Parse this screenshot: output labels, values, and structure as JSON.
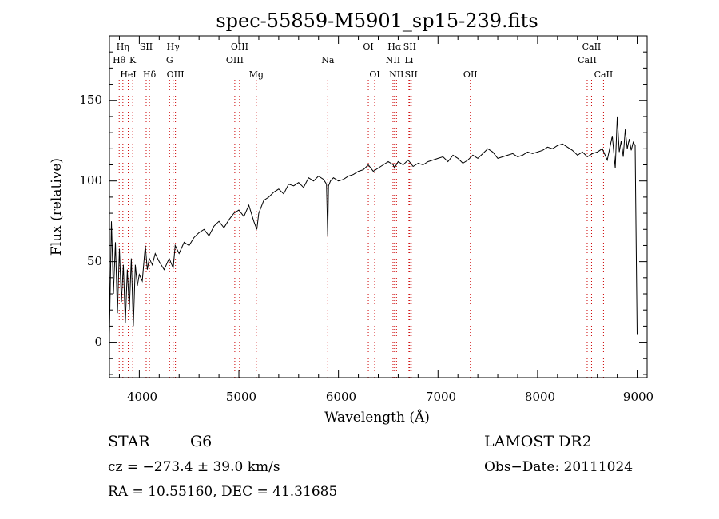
{
  "chart_data": {
    "type": "line",
    "title": "spec-55859-M5901_sp15-239.fits",
    "xlabel": "Wavelength (Å)",
    "ylabel": "Flux (relative)",
    "xlim": [
      3700,
      9100
    ],
    "ylim": [
      -22,
      190
    ],
    "x_ticks": [
      "4000",
      "5000",
      "6000",
      "7000",
      "8000",
      "9000"
    ],
    "y_ticks": [
      "0",
      "50",
      "100",
      "150"
    ],
    "grid": false,
    "series": [
      {
        "x": [
          3700,
          3720,
          3740,
          3760,
          3780,
          3800,
          3820,
          3840,
          3860,
          3880,
          3900,
          3920,
          3940,
          3960,
          3980,
          4000,
          4030,
          4060,
          4080,
          4100,
          4130,
          4160,
          4200,
          4250,
          4300,
          4340,
          4360,
          4400,
          4450,
          4500,
          4550,
          4600,
          4650,
          4700,
          4750,
          4800,
          4850,
          4860,
          4900,
          4950,
          5000,
          5050,
          5100,
          5150,
          5180,
          5200,
          5250,
          5300,
          5350,
          5400,
          5450,
          5500,
          5550,
          5600,
          5650,
          5700,
          5750,
          5800,
          5850,
          5880,
          5892,
          5900,
          5920,
          5950,
          6000,
          6050,
          6100,
          6150,
          6200,
          6250,
          6300,
          6350,
          6400,
          6450,
          6500,
          6550,
          6563,
          6600,
          6650,
          6700,
          6750,
          6800,
          6850,
          6900,
          6950,
          7000,
          7050,
          7100,
          7150,
          7200,
          7250,
          7300,
          7350,
          7400,
          7450,
          7500,
          7550,
          7600,
          7650,
          7700,
          7750,
          7800,
          7850,
          7900,
          7950,
          8000,
          8050,
          8100,
          8150,
          8200,
          8250,
          8300,
          8350,
          8400,
          8450,
          8500,
          8550,
          8600,
          8650,
          8700,
          8750,
          8780,
          8800,
          8820,
          8840,
          8860,
          8880,
          8900,
          8920,
          8940,
          8960,
          8980,
          8990,
          9000
        ],
        "y": [
          5,
          75,
          30,
          62,
          18,
          58,
          25,
          48,
          12,
          45,
          20,
          52,
          10,
          48,
          35,
          42,
          38,
          60,
          45,
          52,
          48,
          55,
          50,
          45,
          52,
          46,
          60,
          55,
          62,
          60,
          65,
          68,
          70,
          66,
          72,
          75,
          71,
          72,
          76,
          80,
          82,
          78,
          85,
          75,
          70,
          80,
          88,
          90,
          93,
          95,
          92,
          98,
          97,
          99,
          96,
          102,
          100,
          103,
          101,
          98,
          66,
          97,
          100,
          102,
          100,
          101,
          103,
          104,
          106,
          107,
          110,
          106,
          108,
          110,
          112,
          110,
          108,
          112,
          110,
          113,
          109,
          111,
          110,
          112,
          113,
          114,
          115,
          112,
          116,
          114,
          111,
          113,
          116,
          114,
          117,
          120,
          118,
          114,
          115,
          116,
          117,
          115,
          116,
          118,
          117,
          118,
          119,
          121,
          120,
          122,
          123,
          121,
          119,
          116,
          118,
          115,
          117,
          118,
          120,
          113,
          128,
          108,
          140,
          118,
          125,
          115,
          132,
          120,
          126,
          119,
          124,
          122,
          60,
          5
        ]
      }
    ],
    "line_markers": [
      {
        "label": "Hη",
        "row": 0,
        "x": 3835
      },
      {
        "label": "Hθ",
        "row": 1,
        "x": 3798
      },
      {
        "label": "HeI",
        "row": 2,
        "x": 3889
      },
      {
        "label": "K",
        "row": 1,
        "x": 3934
      },
      {
        "label": "SII",
        "row": 0,
        "x": 4069
      },
      {
        "label": "Hδ",
        "row": 2,
        "x": 4102
      },
      {
        "label": "Hγ",
        "row": 0,
        "x": 4340
      },
      {
        "label": "G",
        "row": 1,
        "x": 4304
      },
      {
        "label": "OIII",
        "row": 2,
        "x": 4363
      },
      {
        "label": "OIII",
        "row": 0,
        "x": 5007
      },
      {
        "label": "OIII",
        "row": 1,
        "x": 4959
      },
      {
        "label": "Mg",
        "row": 2,
        "x": 5175
      },
      {
        "label": "Na",
        "row": 1,
        "x": 5893
      },
      {
        "label": "OI",
        "row": 0,
        "x": 6300
      },
      {
        "label": "OI",
        "row": 2,
        "x": 6364
      },
      {
        "label": "Hα",
        "row": 0,
        "x": 6563
      },
      {
        "label": "SII",
        "row": 0,
        "x": 6716
      },
      {
        "label": "NII",
        "row": 1,
        "x": 6548
      },
      {
        "label": "Li",
        "row": 1,
        "x": 6708
      },
      {
        "label": "NII",
        "row": 2,
        "x": 6583
      },
      {
        "label": "SII",
        "row": 2,
        "x": 6731
      },
      {
        "label": "OII",
        "row": 2,
        "x": 7325
      },
      {
        "label": "CaII",
        "row": 0,
        "x": 8542
      },
      {
        "label": "CaII",
        "row": 1,
        "x": 8498
      },
      {
        "label": "CaII",
        "row": 2,
        "x": 8662
      }
    ],
    "line_positions": [
      3798,
      3835,
      3889,
      3934,
      4069,
      4102,
      4304,
      4340,
      4363,
      4959,
      5007,
      5175,
      5893,
      6300,
      6364,
      6548,
      6563,
      6583,
      6708,
      6716,
      6731,
      7325,
      8498,
      8542,
      8662
    ]
  },
  "info": {
    "class_label": "STAR",
    "subclass": "G6",
    "survey": "LAMOST DR2",
    "cz": "cz = −273.4 ± 39.0 km/s",
    "obs_date": "Obs−Date: 20111024",
    "coords": "RA =  10.55160, DEC =  41.31685"
  }
}
